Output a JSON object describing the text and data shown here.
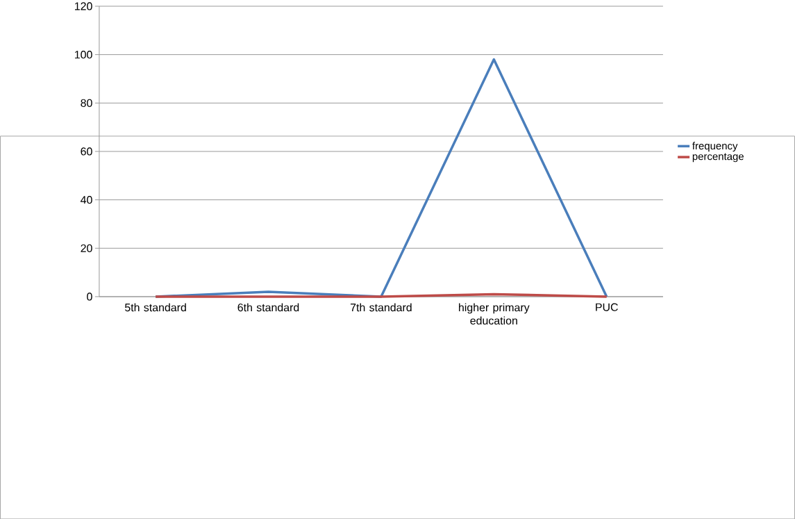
{
  "chart_data": {
    "type": "line",
    "categories": [
      "5th standard",
      "6th standard",
      "7th standard",
      "higher primary education",
      "PUC"
    ],
    "series": [
      {
        "name": "frequency",
        "color": "#4a7ebb",
        "values": [
          0,
          2,
          0,
          98,
          0
        ]
      },
      {
        "name": "percentage",
        "color": "#be4b48",
        "values": [
          0,
          0,
          0,
          1,
          0
        ]
      }
    ],
    "ylim": [
      0,
      120
    ],
    "yticks": [
      0,
      20,
      40,
      60,
      80,
      100,
      120
    ],
    "grid": "y",
    "legend": "right",
    "marker": "none"
  }
}
